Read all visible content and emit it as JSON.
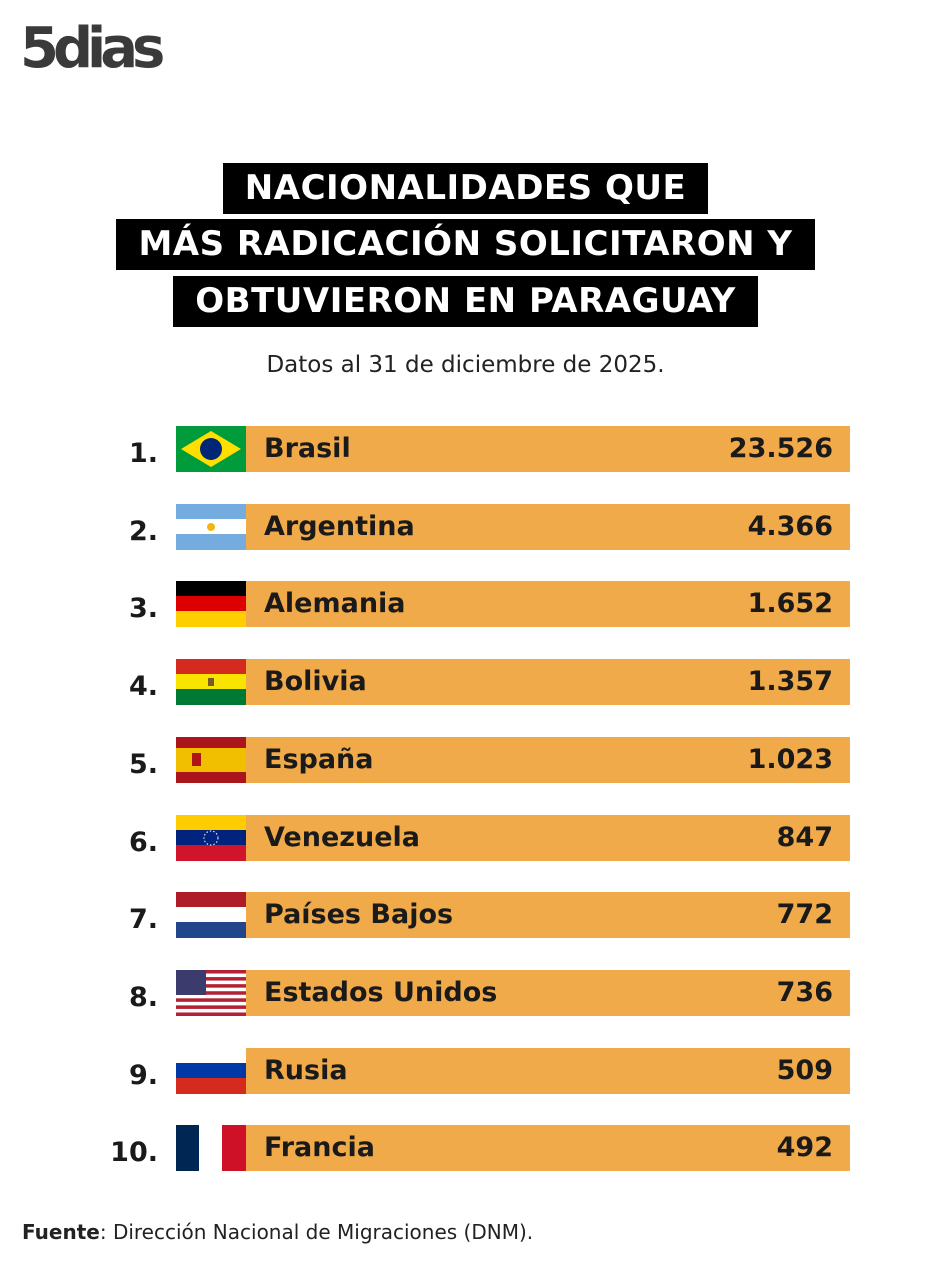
{
  "header": {
    "logo": "5dias"
  },
  "title": {
    "lines": [
      "NACIONALIDADES QUE",
      "MÁS RADICACIÓN SOLICITARON Y",
      "OBTUVIERON EN PARAGUAY"
    ]
  },
  "subtitle": "Datos al 31 de diciembre de 2025.",
  "table": {
    "rows": [
      [
        "1.",
        "Brasil",
        "23.526"
      ],
      [
        "2.",
        "Argentina",
        "4.366"
      ],
      [
        "3.",
        "Alemania",
        "1.652"
      ],
      [
        "4.",
        "Bolivia",
        "1.357"
      ],
      [
        "5.",
        "España",
        "1.023"
      ],
      [
        "6.",
        "Venezuela",
        "847"
      ],
      [
        "7.",
        "Países Bajos",
        "772"
      ],
      [
        "8.",
        "Estados Unidos",
        "736"
      ],
      [
        "9.",
        "Rusia",
        "509"
      ],
      [
        "10.",
        "Francia",
        "492"
      ]
    ]
  },
  "source": {
    "label": "Fuente",
    "text": ": Dirección Nacional de Migraciones (DNM)."
  }
}
